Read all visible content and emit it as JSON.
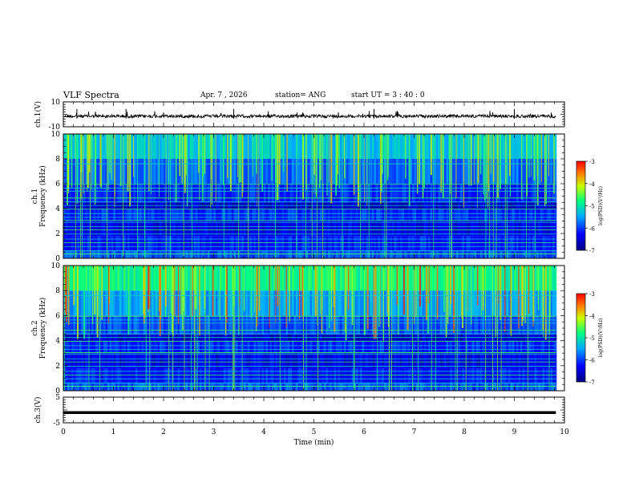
{
  "header": {
    "title": "VLF Spectra",
    "date": "Apr. 7 , 2026",
    "station": "station= ANG",
    "start_ut": "start UT =  3 : 40 : 0"
  },
  "chart_data": [
    {
      "type": "line",
      "name": "ch.1 waveform",
      "ylabel": "ch.1(V)",
      "ylim": [
        -10,
        10
      ],
      "yticks": [
        "10",
        "-10"
      ],
      "baseline": -1.5,
      "xlim": [
        0,
        10
      ],
      "data_end_min": 9.83
    },
    {
      "type": "heatmap",
      "name": "ch.1 spectrogram",
      "ylabel": "Frequency (kHz)",
      "ylabel_channel": "ch.1",
      "ylim": [
        0,
        10
      ],
      "yticks": [
        "0",
        "2",
        "4",
        "6",
        "8",
        "10"
      ],
      "xlim": [
        0,
        10
      ],
      "colorbar": {
        "label": "log(PSD)(V²/Hz)",
        "ticks": [
          "-3",
          "-4",
          "-5",
          "-6",
          "-7"
        ],
        "range": [
          -7,
          -3
        ]
      }
    },
    {
      "type": "heatmap",
      "name": "ch.2 spectrogram",
      "ylabel": "Frequency (kHz)",
      "ylabel_channel": "ch.2",
      "ylim": [
        0,
        10
      ],
      "yticks": [
        "0",
        "2",
        "4",
        "6",
        "8",
        "10"
      ],
      "xlim": [
        0,
        10
      ],
      "colorbar": {
        "label": "log(PSD)(V²/Hz)",
        "ticks": [
          "-3",
          "-4",
          "-5",
          "-6",
          "-7"
        ],
        "range": [
          -7,
          -3
        ]
      }
    },
    {
      "type": "line",
      "name": "ch.3 waveform",
      "ylabel": "ch.3(V)",
      "ylim": [
        -5,
        5
      ],
      "yticks": [
        "5",
        "-5"
      ],
      "baseline": -1.0,
      "xlim": [
        0,
        10
      ],
      "xlabel": "Time (min)",
      "xticks": [
        "0",
        "1",
        "2",
        "3",
        "4",
        "5",
        "6",
        "7",
        "8",
        "9",
        "10"
      ]
    }
  ]
}
